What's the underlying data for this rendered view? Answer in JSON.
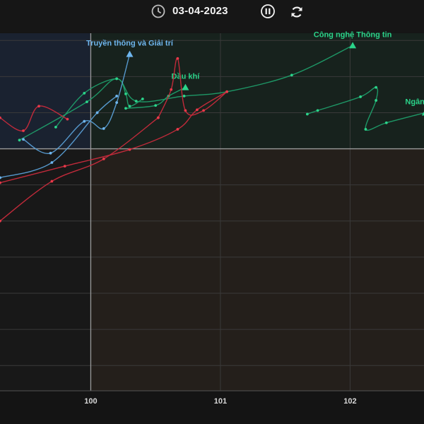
{
  "header": {
    "date": "03-04-2023",
    "clock_icon": "clock-icon",
    "pause_icon": "pause-icon",
    "replay_icon": "replay-icon"
  },
  "colors": {
    "background": "#141414",
    "quad_top_left": "#1a2230",
    "quad_top_right": "#17221d",
    "quad_bottom_left": "#181818",
    "quad_bottom_right": "#241f1b",
    "grid": "#3a3a3a",
    "axis": "#9a9a9a",
    "green": "#2bd48a",
    "red": "#e8394a",
    "blue": "#6fb6ee",
    "green_line": "#1f9e6a",
    "red_line": "#c92b3c",
    "blue_line": "#5a9fd6"
  },
  "chart_data": {
    "type": "line",
    "x_ticks": [
      100,
      101,
      102
    ],
    "xlim": [
      99.3,
      102.57
    ],
    "ylim": [
      96.65,
      101.6
    ],
    "center": [
      100,
      100
    ],
    "grid": true,
    "series": [
      {
        "name": "Công nghệ Thông tin",
        "color": "green",
        "points": [
          [
            99.45,
            100.12
          ],
          [
            99.97,
            100.65
          ],
          [
            100.2,
            100.97
          ],
          [
            100.35,
            100.66
          ],
          [
            100.72,
            100.73
          ],
          [
            101.05,
            100.79
          ],
          [
            101.55,
            101.02
          ],
          [
            102.02,
            101.43
          ]
        ],
        "label_pos": "above"
      },
      {
        "name": "Ngân hàng",
        "color": "green",
        "points": [
          [
            101.67,
            100.48
          ],
          [
            101.75,
            100.53
          ],
          [
            102.08,
            100.72
          ],
          [
            102.2,
            100.85
          ],
          [
            102.2,
            100.67
          ],
          [
            102.12,
            100.27
          ],
          [
            102.28,
            100.36
          ],
          [
            102.58,
            100.5
          ]
        ],
        "label_pos": "above"
      },
      {
        "name": "Dầu khí",
        "color": "green",
        "points": [
          [
            100.27,
            100.56
          ],
          [
            100.5,
            100.6
          ],
          [
            100.6,
            100.73
          ],
          [
            100.73,
            100.85
          ]
        ],
        "label_pos": "above"
      },
      {
        "name": "",
        "color": "green",
        "points": [
          [
            99.73,
            100.3
          ],
          [
            99.95,
            100.77
          ],
          [
            100.2,
            100.97
          ],
          [
            100.27,
            100.76
          ],
          [
            100.3,
            100.59
          ],
          [
            100.4,
            100.69
          ]
        ],
        "label_pos": "none"
      },
      {
        "name": "",
        "color": "red",
        "points": [
          [
            99.3,
            100.43
          ],
          [
            99.48,
            100.25
          ],
          [
            99.6,
            100.59
          ],
          [
            99.82,
            100.41
          ]
        ],
        "label_pos": "none"
      },
      {
        "name": "",
        "color": "red",
        "points": [
          [
            100.52,
            100.43
          ],
          [
            100.62,
            100.82
          ],
          [
            100.67,
            101.25
          ],
          [
            100.73,
            100.53
          ],
          [
            100.87,
            100.53
          ],
          [
            101.05,
            100.79
          ]
        ],
        "label_pos": "none"
      },
      {
        "name": "",
        "color": "red",
        "points": [
          [
            99.3,
            99.53
          ],
          [
            99.8,
            99.76
          ],
          [
            100.3,
            99.99
          ],
          [
            100.67,
            100.27
          ],
          [
            100.82,
            100.54
          ],
          [
            101.05,
            100.79
          ]
        ],
        "label_pos": "none"
      },
      {
        "name": "",
        "color": "red",
        "points": [
          [
            99.3,
            99.0
          ],
          [
            99.7,
            99.55
          ],
          [
            100.1,
            99.86
          ],
          [
            100.52,
            100.43
          ]
        ],
        "label_pos": "none"
      },
      {
        "name": "Truyền thông và Giải trí",
        "color": "blue",
        "points": [
          [
            99.48,
            100.13
          ],
          [
            99.69,
            99.94
          ],
          [
            99.95,
            100.38
          ],
          [
            100.1,
            100.28
          ],
          [
            100.2,
            100.64
          ],
          [
            100.3,
            101.31
          ]
        ],
        "label_pos": "above"
      },
      {
        "name": "",
        "color": "blue",
        "points": [
          [
            99.3,
            99.6
          ],
          [
            99.7,
            99.81
          ],
          [
            100.05,
            100.5
          ],
          [
            100.2,
            100.73
          ]
        ],
        "label_pos": "none"
      }
    ]
  }
}
